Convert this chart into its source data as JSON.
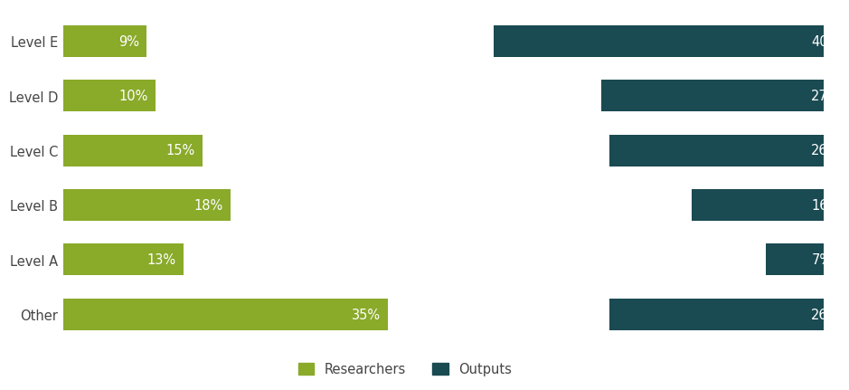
{
  "categories": [
    "Level E",
    "Level D",
    "Level C",
    "Level B",
    "Level A",
    "Other"
  ],
  "researchers": [
    9,
    10,
    15,
    18,
    13,
    35
  ],
  "outputs": [
    40,
    27,
    26,
    16,
    7,
    26
  ],
  "researcher_color": "#8aaa2a",
  "output_color": "#1a4a52",
  "bar_height": 0.58,
  "legend_labels": [
    "Researchers",
    "Outputs"
  ],
  "text_color_white": "#ffffff",
  "background_color": "#ffffff",
  "label_fontsize": 10.5,
  "legend_fontsize": 10.5,
  "tick_fontsize": 10.5,
  "max_researchers": 40,
  "max_outputs": 45
}
